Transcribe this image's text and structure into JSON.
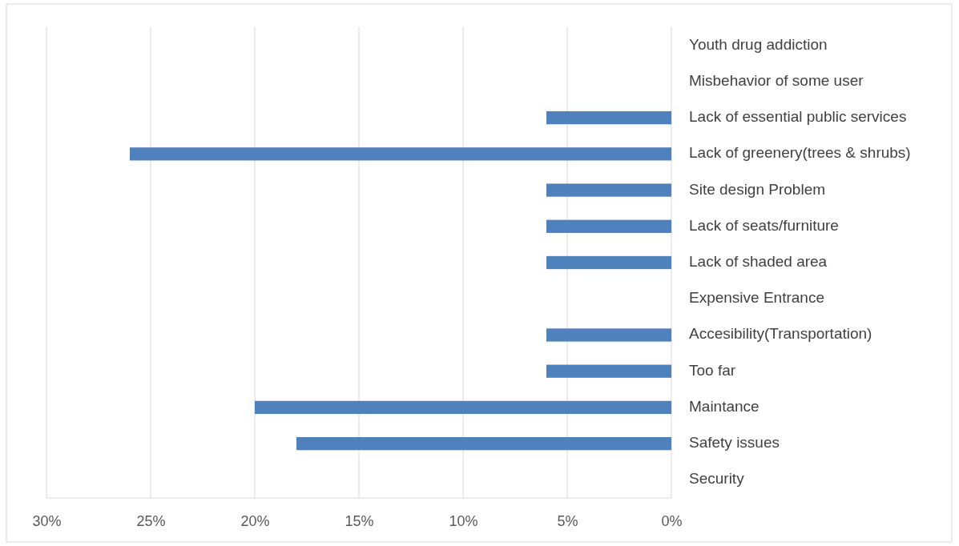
{
  "chart_data": {
    "type": "bar",
    "orientation": "horizontal",
    "categories": [
      "Youth drug addiction",
      "Misbehavior of some user",
      "Lack of essential public services",
      "Lack of greenery(trees & shrubs)",
      "Site design Problem",
      "Lack of seats/furniture",
      "Lack of shaded area",
      "Expensive Entrance",
      "Accesibility(Transportation)",
      "Too far",
      "Maintance",
      "Safety issues",
      "Security"
    ],
    "values": [
      0,
      0,
      6,
      26,
      6,
      6,
      6,
      0,
      6,
      6,
      20,
      18,
      0
    ],
    "color": "#4f81bd",
    "xlim": [
      30,
      0
    ],
    "xticks": [
      {
        "value": 30,
        "label": "30%"
      },
      {
        "value": 25,
        "label": "25%"
      },
      {
        "value": 20,
        "label": "20%"
      },
      {
        "value": 15,
        "label": "15%"
      },
      {
        "value": 10,
        "label": "10%"
      },
      {
        "value": 5,
        "label": "5%"
      },
      {
        "value": 0,
        "label": "0%"
      }
    ],
    "grid": "x"
  }
}
